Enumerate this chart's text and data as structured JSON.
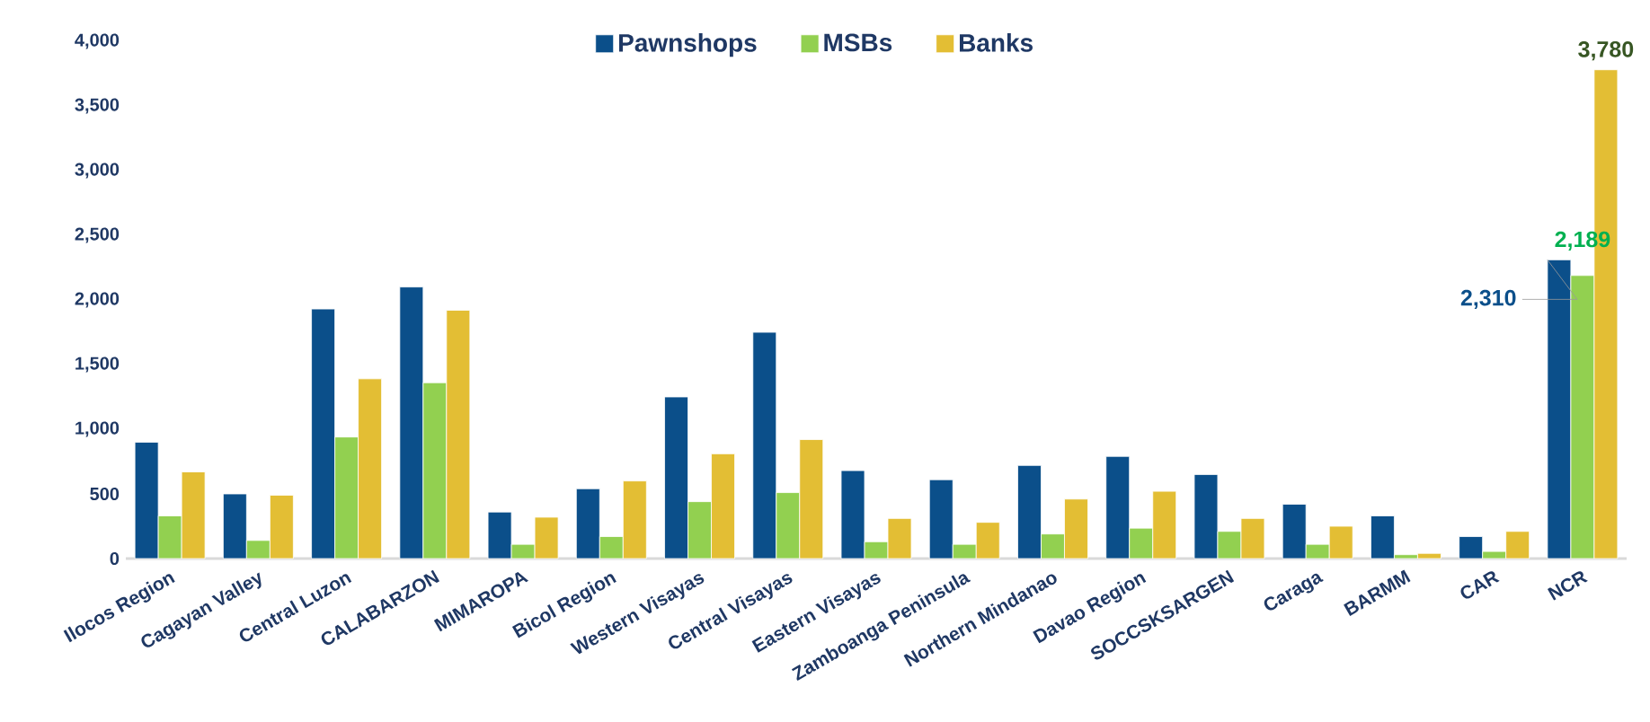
{
  "chart_data": {
    "type": "bar",
    "categories": [
      "Ilocos Region",
      "Cagayan Valley",
      "Central Luzon",
      "CALABARZON",
      "MIMAROPA",
      "Bicol Region",
      "Western Visayas",
      "Central Visayas",
      "Eastern Visayas",
      "Zamboanga Peninsula",
      "Northern Mindanao",
      "Davao Region",
      "SOCCSKSARGEN",
      "Caraga",
      "BARMM",
      "CAR",
      "NCR"
    ],
    "series": [
      {
        "name": "Pawnshops",
        "color": "#0b4f8a",
        "values": [
          900,
          500,
          1930,
          2100,
          360,
          540,
          1250,
          1750,
          680,
          610,
          720,
          790,
          650,
          420,
          330,
          170,
          2310
        ],
        "value_labels": [
          null,
          null,
          null,
          null,
          null,
          null,
          null,
          null,
          null,
          null,
          null,
          null,
          null,
          null,
          null,
          null,
          "2,310"
        ]
      },
      {
        "name": "MSBs",
        "color": "#92d050",
        "values": [
          330,
          140,
          940,
          1360,
          110,
          170,
          440,
          510,
          130,
          110,
          190,
          235,
          210,
          110,
          30,
          55,
          2189
        ],
        "value_labels": [
          null,
          null,
          null,
          null,
          null,
          null,
          null,
          null,
          null,
          null,
          null,
          null,
          null,
          null,
          null,
          null,
          "2,189"
        ]
      },
      {
        "name": "Banks",
        "color": "#e3be34",
        "values": [
          670,
          490,
          1390,
          1920,
          320,
          600,
          810,
          920,
          310,
          280,
          460,
          520,
          310,
          250,
          40,
          210,
          3780
        ],
        "value_labels": [
          null,
          null,
          null,
          null,
          null,
          null,
          null,
          null,
          null,
          null,
          null,
          null,
          null,
          null,
          null,
          null,
          "3,780"
        ]
      }
    ],
    "ylim": [
      0,
      4000
    ],
    "yticks": [
      {
        "value": 0,
        "label": "0"
      },
      {
        "value": 500,
        "label": "500"
      },
      {
        "value": 1000,
        "label": "1,000"
      },
      {
        "value": 1500,
        "label": "1,500"
      },
      {
        "value": 2000,
        "label": "2,000"
      },
      {
        "value": 2500,
        "label": "2,500"
      },
      {
        "value": 3000,
        "label": "3,000"
      },
      {
        "value": 3500,
        "label": "3,500"
      },
      {
        "value": 4000,
        "label": "4,000"
      }
    ],
    "legend": "top",
    "grid": false
  }
}
